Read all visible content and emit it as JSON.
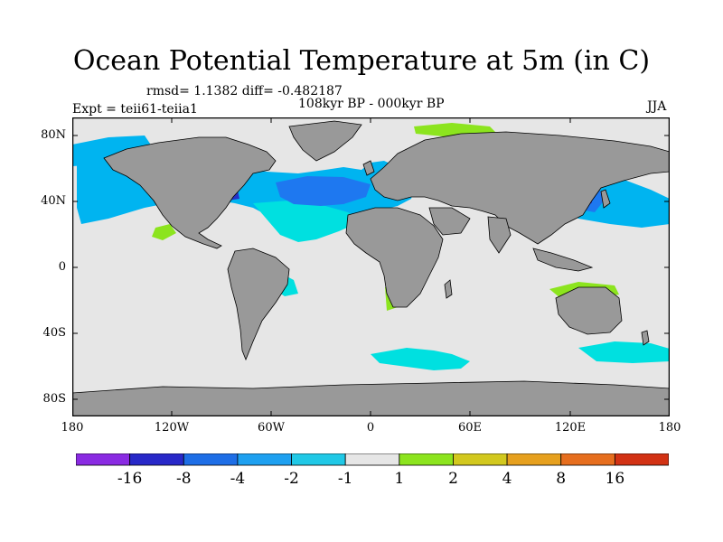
{
  "title": "Ocean Potential Temperature at 5m (in C)",
  "stats_text": "rmsd= 1.1382 diff= -0.482187",
  "experiment_text": "Expt = teii61-teiia1",
  "period_text": "108kyr BP - 000kyr BP",
  "season": "JJA",
  "map": {
    "lat_ticks": [
      "80N",
      "40N",
      "0",
      "40S",
      "80S"
    ],
    "lon_ticks": [
      "180",
      "120W",
      "60W",
      "0",
      "60E",
      "120E",
      "180"
    ],
    "colors": {
      "ocean_neutral": "#e6e6e6",
      "land": "#999999",
      "cool_light": "#00e0e0",
      "cool": "#00b4f0",
      "cool_strong": "#1e78f0",
      "cold": "#2832c8",
      "warm_light": "#8ce41e"
    }
  },
  "colorbar": {
    "labels": [
      "-16",
      "-8",
      "-4",
      "-2",
      "-1",
      "1",
      "2",
      "4",
      "8",
      "16"
    ],
    "colors": [
      "#8a2be2",
      "#2828c8",
      "#1e6ee6",
      "#1ea0f0",
      "#20c8e6",
      "#e6e6e6",
      "#8ce41e",
      "#d2c81e",
      "#e6a01e",
      "#e66e1e",
      "#d23214"
    ]
  }
}
